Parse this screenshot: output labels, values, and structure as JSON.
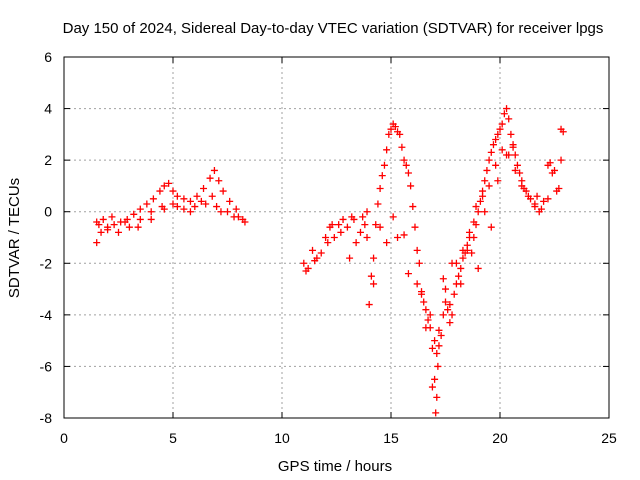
{
  "chart_data": {
    "type": "scatter",
    "title": "Day 150 of 2024, Sidereal Day-to-day VTEC variation (SDTVAR) for receiver lpgs",
    "xlabel": "GPS time / hours",
    "ylabel": "SDTVAR / TECUs",
    "xlim": [
      0,
      25
    ],
    "ylim": [
      -8,
      6
    ],
    "xticks": [
      0,
      5,
      10,
      15,
      20,
      25
    ],
    "yticks": [
      -8,
      -6,
      -4,
      -2,
      0,
      2,
      4,
      6
    ],
    "grid": true,
    "marker": "+",
    "color": "#ff0000",
    "series": [
      {
        "name": "SDTVAR",
        "x": [
          1.5,
          1.7,
          2.0,
          2.3,
          2.6,
          2.9,
          3.2,
          3.5,
          3.8,
          4.1,
          4.4,
          4.6,
          4.8,
          5.0,
          5.2,
          5.5,
          5.8,
          6.1,
          6.4,
          6.7,
          6.9,
          7.1,
          7.3,
          7.6,
          7.9,
          8.2,
          1.6,
          2.0,
          2.5,
          3.0,
          3.5,
          4.0,
          4.5,
          5.0,
          5.5,
          6.0,
          6.5,
          7.0,
          7.5,
          8.0,
          1.5,
          1.8,
          2.2,
          2.8,
          3.4,
          4.0,
          4.6,
          5.2,
          5.8,
          6.3,
          6.8,
          7.2,
          7.8,
          8.3,
          11.0,
          11.2,
          11.4,
          11.6,
          11.8,
          12.0,
          12.2,
          12.4,
          12.6,
          12.8,
          13.0,
          13.2,
          13.4,
          13.6,
          13.8,
          13.9,
          14.0,
          14.1,
          14.2,
          14.3,
          14.4,
          14.5,
          14.6,
          14.7,
          14.8,
          14.9,
          15.0,
          15.1,
          15.2,
          15.3,
          15.4,
          15.5,
          15.6,
          15.7,
          15.8,
          15.9,
          16.0,
          16.1,
          16.2,
          16.3,
          16.4,
          16.5,
          16.6,
          16.7,
          16.8,
          16.9,
          17.0,
          17.05,
          17.1,
          17.15,
          17.2,
          17.3,
          17.4,
          17.5,
          17.6,
          17.7,
          17.8,
          17.9,
          18.0,
          18.1,
          18.2,
          18.3,
          18.4,
          18.5,
          18.6,
          18.7,
          18.8,
          18.9,
          19.0,
          19.1,
          19.2,
          19.3,
          19.4,
          19.5,
          19.6,
          19.7,
          19.8,
          19.9,
          20.0,
          20.1,
          20.2,
          20.3,
          20.4,
          20.5,
          20.6,
          20.7,
          20.8,
          20.9,
          21.0,
          21.2,
          21.4,
          21.6,
          21.8,
          22.0,
          22.2,
          22.4,
          22.6,
          22.8,
          22.9,
          11.1,
          11.5,
          12.1,
          12.7,
          13.3,
          13.9,
          14.5,
          15.1,
          15.6,
          16.2,
          16.6,
          16.9,
          17.1,
          17.4,
          17.7,
          18.0,
          18.3,
          18.6,
          18.9,
          19.2,
          19.5,
          19.8,
          20.1,
          20.4,
          20.7,
          21.0,
          21.3,
          21.6,
          21.9,
          22.2,
          22.5,
          22.8,
          12.3,
          13.1,
          13.7,
          14.2,
          14.8,
          15.3,
          15.8,
          16.4,
          16.8,
          17.0,
          17.2,
          17.5,
          17.8,
          18.2,
          18.5,
          18.8,
          19.0,
          19.3,
          19.6,
          19.9,
          20.3,
          20.6,
          21.1,
          21.7,
          22.3,
          22.7
        ],
        "y": [
          -1.2,
          -0.8,
          -0.6,
          -0.5,
          -0.4,
          -0.3,
          -0.1,
          0.1,
          0.3,
          0.5,
          0.8,
          1.0,
          1.1,
          0.8,
          0.6,
          0.5,
          0.4,
          0.6,
          0.9,
          1.3,
          1.6,
          1.2,
          0.8,
          0.4,
          0.1,
          -0.3,
          -0.5,
          -0.7,
          -0.8,
          -0.6,
          -0.3,
          0.0,
          0.2,
          0.3,
          0.1,
          0.2,
          0.3,
          0.2,
          0.0,
          -0.2,
          -0.4,
          -0.3,
          -0.2,
          -0.4,
          -0.6,
          -0.3,
          0.1,
          0.2,
          0.0,
          0.4,
          0.6,
          0.0,
          -0.2,
          -0.4,
          -2.0,
          -2.2,
          -1.5,
          -1.8,
          -1.6,
          -1.0,
          -0.6,
          -1.0,
          -0.5,
          -0.3,
          -0.6,
          -0.2,
          -1.2,
          -0.8,
          -0.5,
          -1.0,
          -3.6,
          -2.5,
          -1.8,
          -0.5,
          0.3,
          0.9,
          1.4,
          1.8,
          2.4,
          3.0,
          3.2,
          3.4,
          3.3,
          3.1,
          3.0,
          2.5,
          2.0,
          1.8,
          1.5,
          1.0,
          0.2,
          -0.6,
          -1.5,
          -2.0,
          -3.1,
          -3.5,
          -3.8,
          -4.2,
          -4.5,
          -5.3,
          -6.5,
          -7.8,
          -7.2,
          -6.0,
          -5.2,
          -4.8,
          -4.0,
          -3.5,
          -3.8,
          -4.3,
          -4.0,
          -3.2,
          -2.8,
          -2.5,
          -2.2,
          -1.8,
          -1.6,
          -1.3,
          -1.0,
          -1.6,
          -1.0,
          -0.5,
          0.0,
          0.4,
          0.8,
          1.2,
          1.6,
          2.0,
          2.3,
          2.6,
          2.8,
          3.0,
          3.2,
          3.4,
          3.8,
          4.0,
          3.6,
          3.0,
          2.6,
          2.2,
          1.8,
          1.5,
          1.2,
          0.8,
          0.5,
          0.2,
          0.0,
          0.4,
          1.8,
          1.5,
          0.8,
          3.2,
          3.1,
          -2.3,
          -1.9,
          -1.2,
          -0.8,
          -0.3,
          0.0,
          -0.6,
          -0.2,
          -0.9,
          -2.8,
          -4.5,
          -6.8,
          -5.5,
          -2.6,
          -3.6,
          -2.0,
          -1.5,
          -0.8,
          0.2,
          0.6,
          1.0,
          1.8,
          2.4,
          2.2,
          1.6,
          1.0,
          0.6,
          0.3,
          0.1,
          0.5,
          1.6,
          2.0,
          -0.5,
          -1.8,
          -0.2,
          -2.8,
          -1.2,
          -1.0,
          -2.4,
          -3.2,
          -4.0,
          -5.0,
          -4.6,
          -3.0,
          -2.0,
          -2.8,
          -1.5,
          -0.4,
          -2.2,
          0.0,
          -0.6,
          1.2,
          2.2,
          2.5,
          0.9,
          0.6,
          1.9,
          0.9
        ]
      }
    ]
  }
}
